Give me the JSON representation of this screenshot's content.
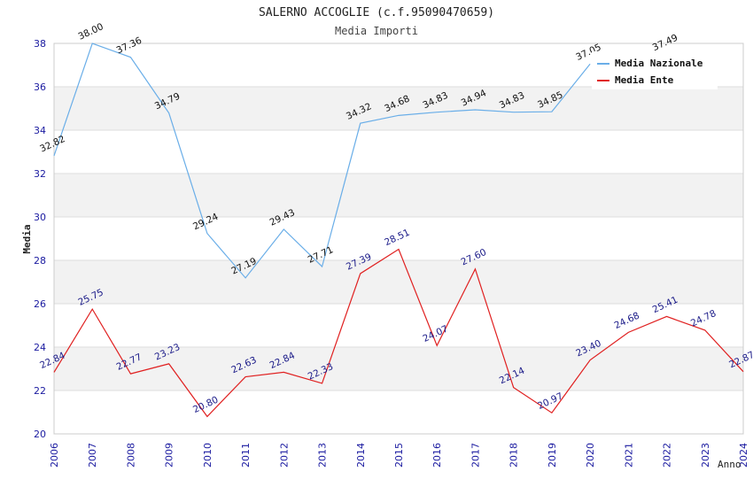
{
  "chart_data": {
    "type": "line",
    "title": "SALERNO ACCOGLIE (c.f.95090470659)",
    "subtitle": "Media Importi",
    "xlabel": "Anno",
    "ylabel": "Media",
    "ylim": [
      20,
      38
    ],
    "yticks": [
      20,
      22,
      24,
      26,
      28,
      30,
      32,
      34,
      36,
      38
    ],
    "categories": [
      "2006",
      "2007",
      "2008",
      "2009",
      "2010",
      "2011",
      "2012",
      "2013",
      "2014",
      "2015",
      "2016",
      "2017",
      "2018",
      "2019",
      "2020",
      "2021",
      "2022",
      "2023",
      "2024"
    ],
    "series": [
      {
        "name": "Media Nazionale",
        "color": "#6aaee8",
        "values": [
          32.82,
          38.0,
          37.36,
          34.79,
          29.24,
          27.19,
          29.43,
          27.71,
          34.32,
          34.68,
          34.83,
          34.94,
          34.83,
          34.85,
          37.05,
          null,
          37.49,
          null,
          null
        ],
        "labels": [
          "32.82",
          "38.00",
          "37.36",
          "34.79",
          "29.24",
          "27.19",
          "29.43",
          "27.71",
          "34.32",
          "34.68",
          "34.83",
          "34.94",
          "34.83",
          "34.85",
          "37.05",
          null,
          "37.49",
          null,
          null
        ]
      },
      {
        "name": "Media Ente",
        "color": "#e02020",
        "values": [
          22.84,
          25.75,
          22.77,
          23.23,
          20.8,
          22.63,
          22.84,
          22.33,
          27.39,
          28.51,
          24.07,
          27.6,
          22.14,
          20.97,
          23.4,
          24.68,
          25.41,
          24.78,
          22.87
        ],
        "labels": [
          "22.84",
          "25.75",
          "22.77",
          "23.23",
          "20.80",
          "22.63",
          "22.84",
          "22.33",
          "27.39",
          "28.51",
          "24.07",
          "27.60",
          "22.14",
          "20.97",
          "23.40",
          "24.68",
          "25.41",
          "24.78",
          "22.87"
        ]
      }
    ],
    "legend": {
      "position": "top-right"
    }
  }
}
